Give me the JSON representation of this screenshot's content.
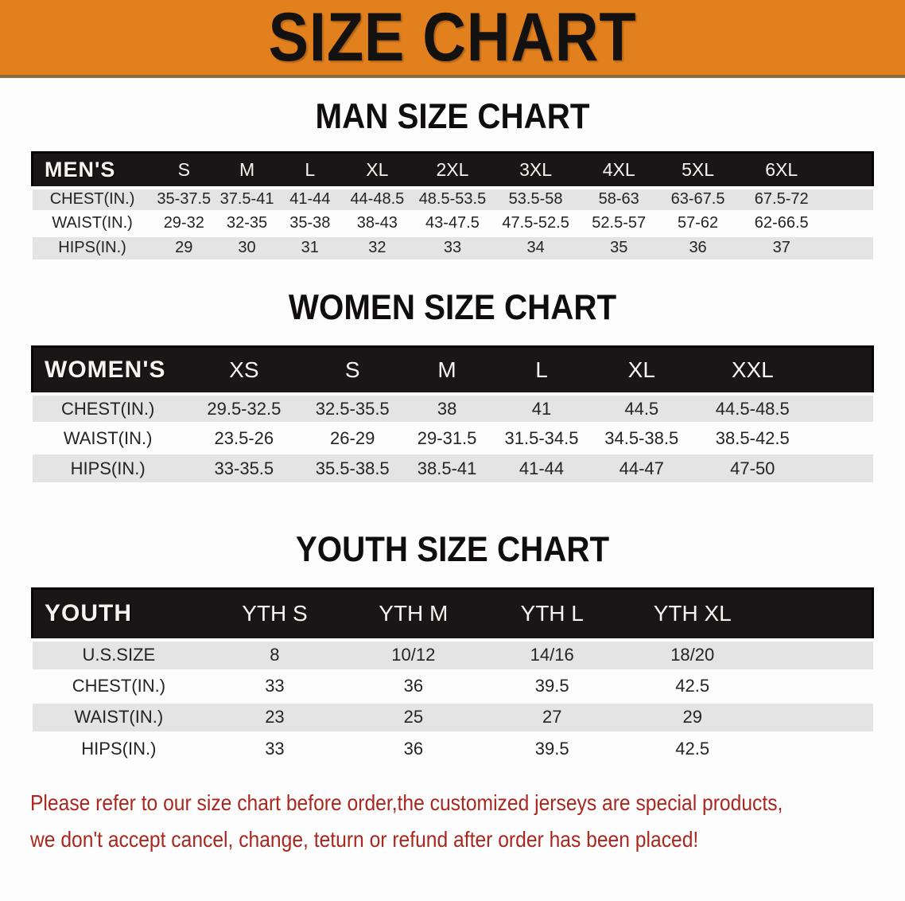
{
  "banner": {
    "title": "SIZE CHART"
  },
  "colors": {
    "banner_bg": "#E2801E",
    "banner_edge": "#8b6a43",
    "header_bg": "#1a1516",
    "row_alt_bg": "#e4e4e4",
    "note_color": "#a8281f"
  },
  "tables": [
    {
      "id": "men",
      "heading": "MAN SIZE CHART",
      "label": "MEN'S",
      "columns": [
        "S",
        "M",
        "L",
        "XL",
        "2XL",
        "3XL",
        "4XL",
        "5XL",
        "6XL"
      ],
      "rows": [
        {
          "label": "CHEST(IN.)",
          "values": [
            "35-37.5",
            "37.5-41",
            "41-44",
            "44-48.5",
            "48.5-53.5",
            "53.5-58",
            "58-63",
            "63-67.5",
            "67.5-72"
          ]
        },
        {
          "label": "WAIST(IN.)",
          "values": [
            "29-32",
            "32-35",
            "35-38",
            "38-43",
            "43-47.5",
            "47.5-52.5",
            "52.5-57",
            "57-62",
            "62-66.5"
          ]
        },
        {
          "label": "HIPS(IN.)",
          "values": [
            "29",
            "30",
            "31",
            "32",
            "33",
            "34",
            "35",
            "36",
            "37"
          ]
        }
      ]
    },
    {
      "id": "women",
      "heading": "WOMEN SIZE CHART",
      "label": "WOMEN'S",
      "columns": [
        "XS",
        "S",
        "M",
        "L",
        "XL",
        "XXL"
      ],
      "rows": [
        {
          "label": "CHEST(IN.)",
          "values": [
            "29.5-32.5",
            "32.5-35.5",
            "38",
            "41",
            "44.5",
            "44.5-48.5"
          ]
        },
        {
          "label": "WAIST(IN.)",
          "values": [
            "23.5-26",
            "26-29",
            "29-31.5",
            "31.5-34.5",
            "34.5-38.5",
            "38.5-42.5"
          ]
        },
        {
          "label": "HIPS(IN.)",
          "values": [
            "33-35.5",
            "35.5-38.5",
            "38.5-41",
            "41-44",
            "44-47",
            "47-50"
          ]
        }
      ]
    },
    {
      "id": "youth",
      "heading": "YOUTH SIZE CHART",
      "label": "YOUTH",
      "columns": [
        "YTH S",
        "YTH M",
        "YTH L",
        "YTH XL"
      ],
      "rows": [
        {
          "label": "U.S.SIZE",
          "values": [
            "8",
            "10/12",
            "14/16",
            "18/20"
          ]
        },
        {
          "label": "CHEST(IN.)",
          "values": [
            "33",
            "36",
            "39.5",
            "42.5"
          ]
        },
        {
          "label": "WAIST(IN.)",
          "values": [
            "23",
            "25",
            "27",
            "29"
          ]
        },
        {
          "label": "HIPS(IN.)",
          "values": [
            "33",
            "36",
            "39.5",
            "42.5"
          ]
        }
      ]
    }
  ],
  "note": {
    "line1": "Please refer to our size chart before order,the customized jerseys are special products,",
    "line2": "we don't accept cancel, change, teturn or refund after order has been placed!"
  }
}
